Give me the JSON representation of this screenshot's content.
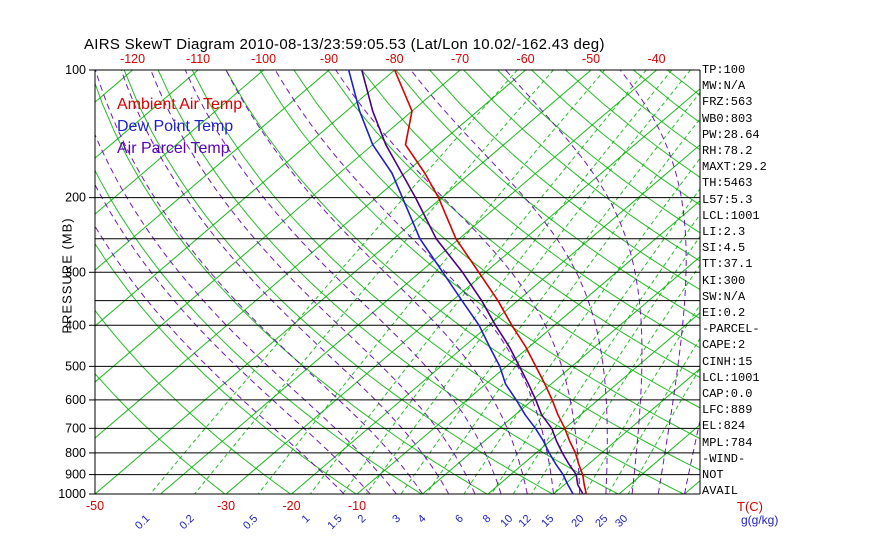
{
  "title": "AIRS SkewT Diagram 2010-08-13/23:59:05.53 (Lat/Lon 10.02/-162.43 deg)",
  "colors": {
    "green": "#00b000",
    "red": "#d80000",
    "blue": "#2020c8",
    "purple": "#5c00b8",
    "parcel": "#4b0082",
    "black": "#000000"
  },
  "legend": [
    {
      "id": "ambient-air-temp",
      "label": "Ambient Air Temp",
      "color": "#d80000"
    },
    {
      "id": "dew-point-temp",
      "label": "Dew Point Temp",
      "color": "#2020c8"
    },
    {
      "id": "air-parcel-temp",
      "label": "Air Parcel Temp",
      "color": "#5c00b8"
    }
  ],
  "axes": {
    "pressure_label": "PRESSURE (MB)",
    "temp_unit_label": "T(C)",
    "mixing_unit_label": "g(g/kg)"
  },
  "side_panel": [
    "TP:100",
    "MW:N/A",
    "FRZ:563",
    "WB0:803",
    "PW:28.64",
    "RH:78.2",
    "MAXT:29.2",
    "TH:5463",
    "L57:5.3",
    "LCL:1001",
    "LI:2.3",
    "SI:4.5",
    "TT:37.1",
    "KI:300",
    "SW:N/A",
    "EI:0.2",
    "-PARCEL-",
    "CAPE:2",
    "CINH:15",
    "LCL:1001",
    "CAP:0.0",
    "LFC:889",
    "EL:824",
    "MPL:784",
    "-WIND-",
    "NOT",
    "AVAIL"
  ],
  "chart_data": {
    "type": "line",
    "title": "AIRS SkewT Diagram 2010-08-13/23:59:05.53 (Lat/Lon 10.02/-162.43 deg)",
    "xlabel": "T(C)",
    "ylabel": "PRESSURE (MB)",
    "y_scale": "log",
    "ylim": [
      1000,
      100
    ],
    "skewed": true,
    "grid": true,
    "legend_position": "upper-left-inside",
    "pressure_ticks": [
      100,
      200,
      300,
      400,
      500,
      600,
      700,
      800,
      900,
      1000
    ],
    "pressure_lines": [
      100,
      200,
      250,
      300,
      350,
      400,
      500,
      600,
      700,
      800,
      900,
      1000
    ],
    "top_temp_ticks": [
      -120,
      -110,
      -100,
      -90,
      -80,
      -70,
      -60,
      -50,
      -40
    ],
    "bottom_temp_ticks": [
      -50,
      -30,
      -20,
      -10
    ],
    "mixing_ratio_ticks": [
      0.1,
      0.2,
      0.5,
      1,
      1.5,
      2,
      3,
      4,
      6,
      8,
      10,
      12,
      15,
      20,
      25,
      30
    ],
    "reference_lines": {
      "isotherms_c": [
        -120,
        -110,
        -100,
        -90,
        -80,
        -70,
        -60,
        -50,
        -40,
        -30,
        -20,
        -10,
        0,
        10,
        20,
        30,
        40
      ],
      "dry_adiabats_k": [
        243,
        253,
        263,
        273,
        283,
        293,
        303,
        313,
        323,
        333,
        343,
        353,
        363,
        373,
        383,
        393,
        403,
        413,
        423,
        433,
        443,
        453
      ],
      "moist_adiabats_c": [
        -12,
        -8,
        -4,
        0,
        4,
        8,
        12,
        16,
        20,
        24,
        28,
        32,
        36,
        40
      ],
      "mixing_ratio_gkg": [
        0.1,
        0.2,
        0.5,
        1,
        1.5,
        2,
        3,
        4,
        6,
        8,
        10,
        12,
        15,
        20,
        25,
        30
      ]
    },
    "series": [
      {
        "id": "ambient",
        "name": "Ambient Air Temp",
        "color": "#d80000",
        "points": [
          [
            1000,
            25
          ],
          [
            950,
            23
          ],
          [
            900,
            21
          ],
          [
            850,
            18.5
          ],
          [
            800,
            16
          ],
          [
            750,
            13
          ],
          [
            700,
            10
          ],
          [
            650,
            6.5
          ],
          [
            600,
            3
          ],
          [
            550,
            -1
          ],
          [
            500,
            -5.5
          ],
          [
            450,
            -10.5
          ],
          [
            400,
            -16.5
          ],
          [
            350,
            -23
          ],
          [
            300,
            -31
          ],
          [
            250,
            -40.5
          ],
          [
            200,
            -50.5
          ],
          [
            175,
            -57
          ],
          [
            150,
            -65
          ],
          [
            125,
            -70
          ],
          [
            100,
            -80
          ]
        ]
      },
      {
        "id": "dewpoint",
        "name": "Dew Point Temp",
        "color": "#2020c8",
        "points": [
          [
            1000,
            23
          ],
          [
            950,
            20.5
          ],
          [
            900,
            18
          ],
          [
            850,
            15
          ],
          [
            800,
            12
          ],
          [
            750,
            9
          ],
          [
            700,
            5.5
          ],
          [
            650,
            1.5
          ],
          [
            600,
            -2.5
          ],
          [
            550,
            -7
          ],
          [
            500,
            -11
          ],
          [
            450,
            -16
          ],
          [
            400,
            -21.5
          ],
          [
            350,
            -28.5
          ],
          [
            300,
            -36.5
          ],
          [
            250,
            -46
          ],
          [
            200,
            -56
          ],
          [
            175,
            -62
          ],
          [
            150,
            -70
          ],
          [
            125,
            -78
          ],
          [
            100,
            -87
          ]
        ]
      },
      {
        "id": "parcel",
        "name": "Air Parcel Temp",
        "color": "#4b0082",
        "points": [
          [
            1000,
            24.5
          ],
          [
            950,
            22
          ],
          [
            900,
            20
          ],
          [
            850,
            17
          ],
          [
            800,
            14
          ],
          [
            750,
            11
          ],
          [
            700,
            8
          ],
          [
            650,
            4
          ],
          [
            600,
            0.5
          ],
          [
            550,
            -3.5
          ],
          [
            500,
            -8
          ],
          [
            450,
            -13
          ],
          [
            400,
            -19
          ],
          [
            350,
            -25.5
          ],
          [
            300,
            -33.5
          ],
          [
            250,
            -43.5
          ],
          [
            200,
            -54
          ],
          [
            175,
            -60.5
          ],
          [
            150,
            -68
          ],
          [
            125,
            -76
          ],
          [
            100,
            -85
          ]
        ]
      }
    ]
  }
}
